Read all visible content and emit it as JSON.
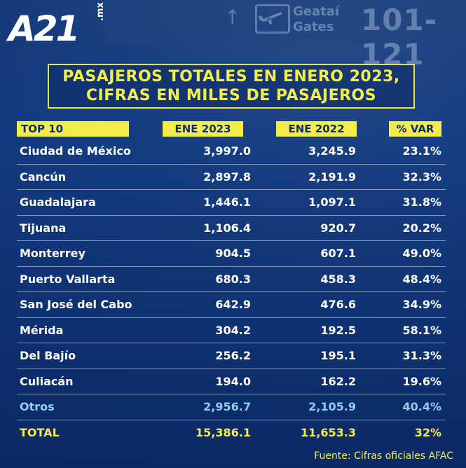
{
  "logo": {
    "main": "A21",
    "suffix": ".mx"
  },
  "background": {
    "gate_label_line1": "Geataí",
    "gate_label_line2": "Gates",
    "gate_numbers": "101-121"
  },
  "title": {
    "line1": "PASAJEROS TOTALES EN ENERO 2023,",
    "line2": "CIFRAS EN MILES DE PASAJEROS"
  },
  "colors": {
    "accent_yellow": "#f4ec4b",
    "otros_blue": "#8fd0f0",
    "background_blue": "#123a7a"
  },
  "table": {
    "headers": {
      "top": "TOP 10",
      "ene2023": "ENE 2023",
      "ene2022": "ENE 2022",
      "var": "% VAR"
    },
    "rows": [
      {
        "city": "Ciudad de México",
        "ene2023": "3,997.0",
        "ene2022": "3,245.9",
        "var": "23.1%"
      },
      {
        "city": "Cancún",
        "ene2023": "2,897.8",
        "ene2022": "2,191.9",
        "var": "32.3%"
      },
      {
        "city": "Guadalajara",
        "ene2023": "1,446.1",
        "ene2022": "1,097.1",
        "var": "31.8%"
      },
      {
        "city": "Tijuana",
        "ene2023": "1,106.4",
        "ene2022": "920.7",
        "var": "20.2%"
      },
      {
        "city": "Monterrey",
        "ene2023": "904.5",
        "ene2022": "607.1",
        "var": "49.0%"
      },
      {
        "city": "Puerto Vallarta",
        "ene2023": "680.3",
        "ene2022": "458.3",
        "var": "48.4%"
      },
      {
        "city": "San José del Cabo",
        "ene2023": "642.9",
        "ene2022": "476.6",
        "var": "34.9%"
      },
      {
        "city": "Mérida",
        "ene2023": "304.2",
        "ene2022": "192.5",
        "var": "58.1%"
      },
      {
        "city": "Del Bajío",
        "ene2023": "256.2",
        "ene2022": "195.1",
        "var": "31.3%"
      },
      {
        "city": "Culiacán",
        "ene2023": "194.0",
        "ene2022": "162.2",
        "var": "19.6%"
      },
      {
        "city": "Otros",
        "ene2023": "2,956.7",
        "ene2022": "2,105.9",
        "var": "40.4%"
      },
      {
        "city": "TOTAL",
        "ene2023": "15,386.1",
        "ene2022": "11,653.3",
        "var": "32%"
      }
    ]
  },
  "source": "Fuente: Cifras oficiales AFAC"
}
